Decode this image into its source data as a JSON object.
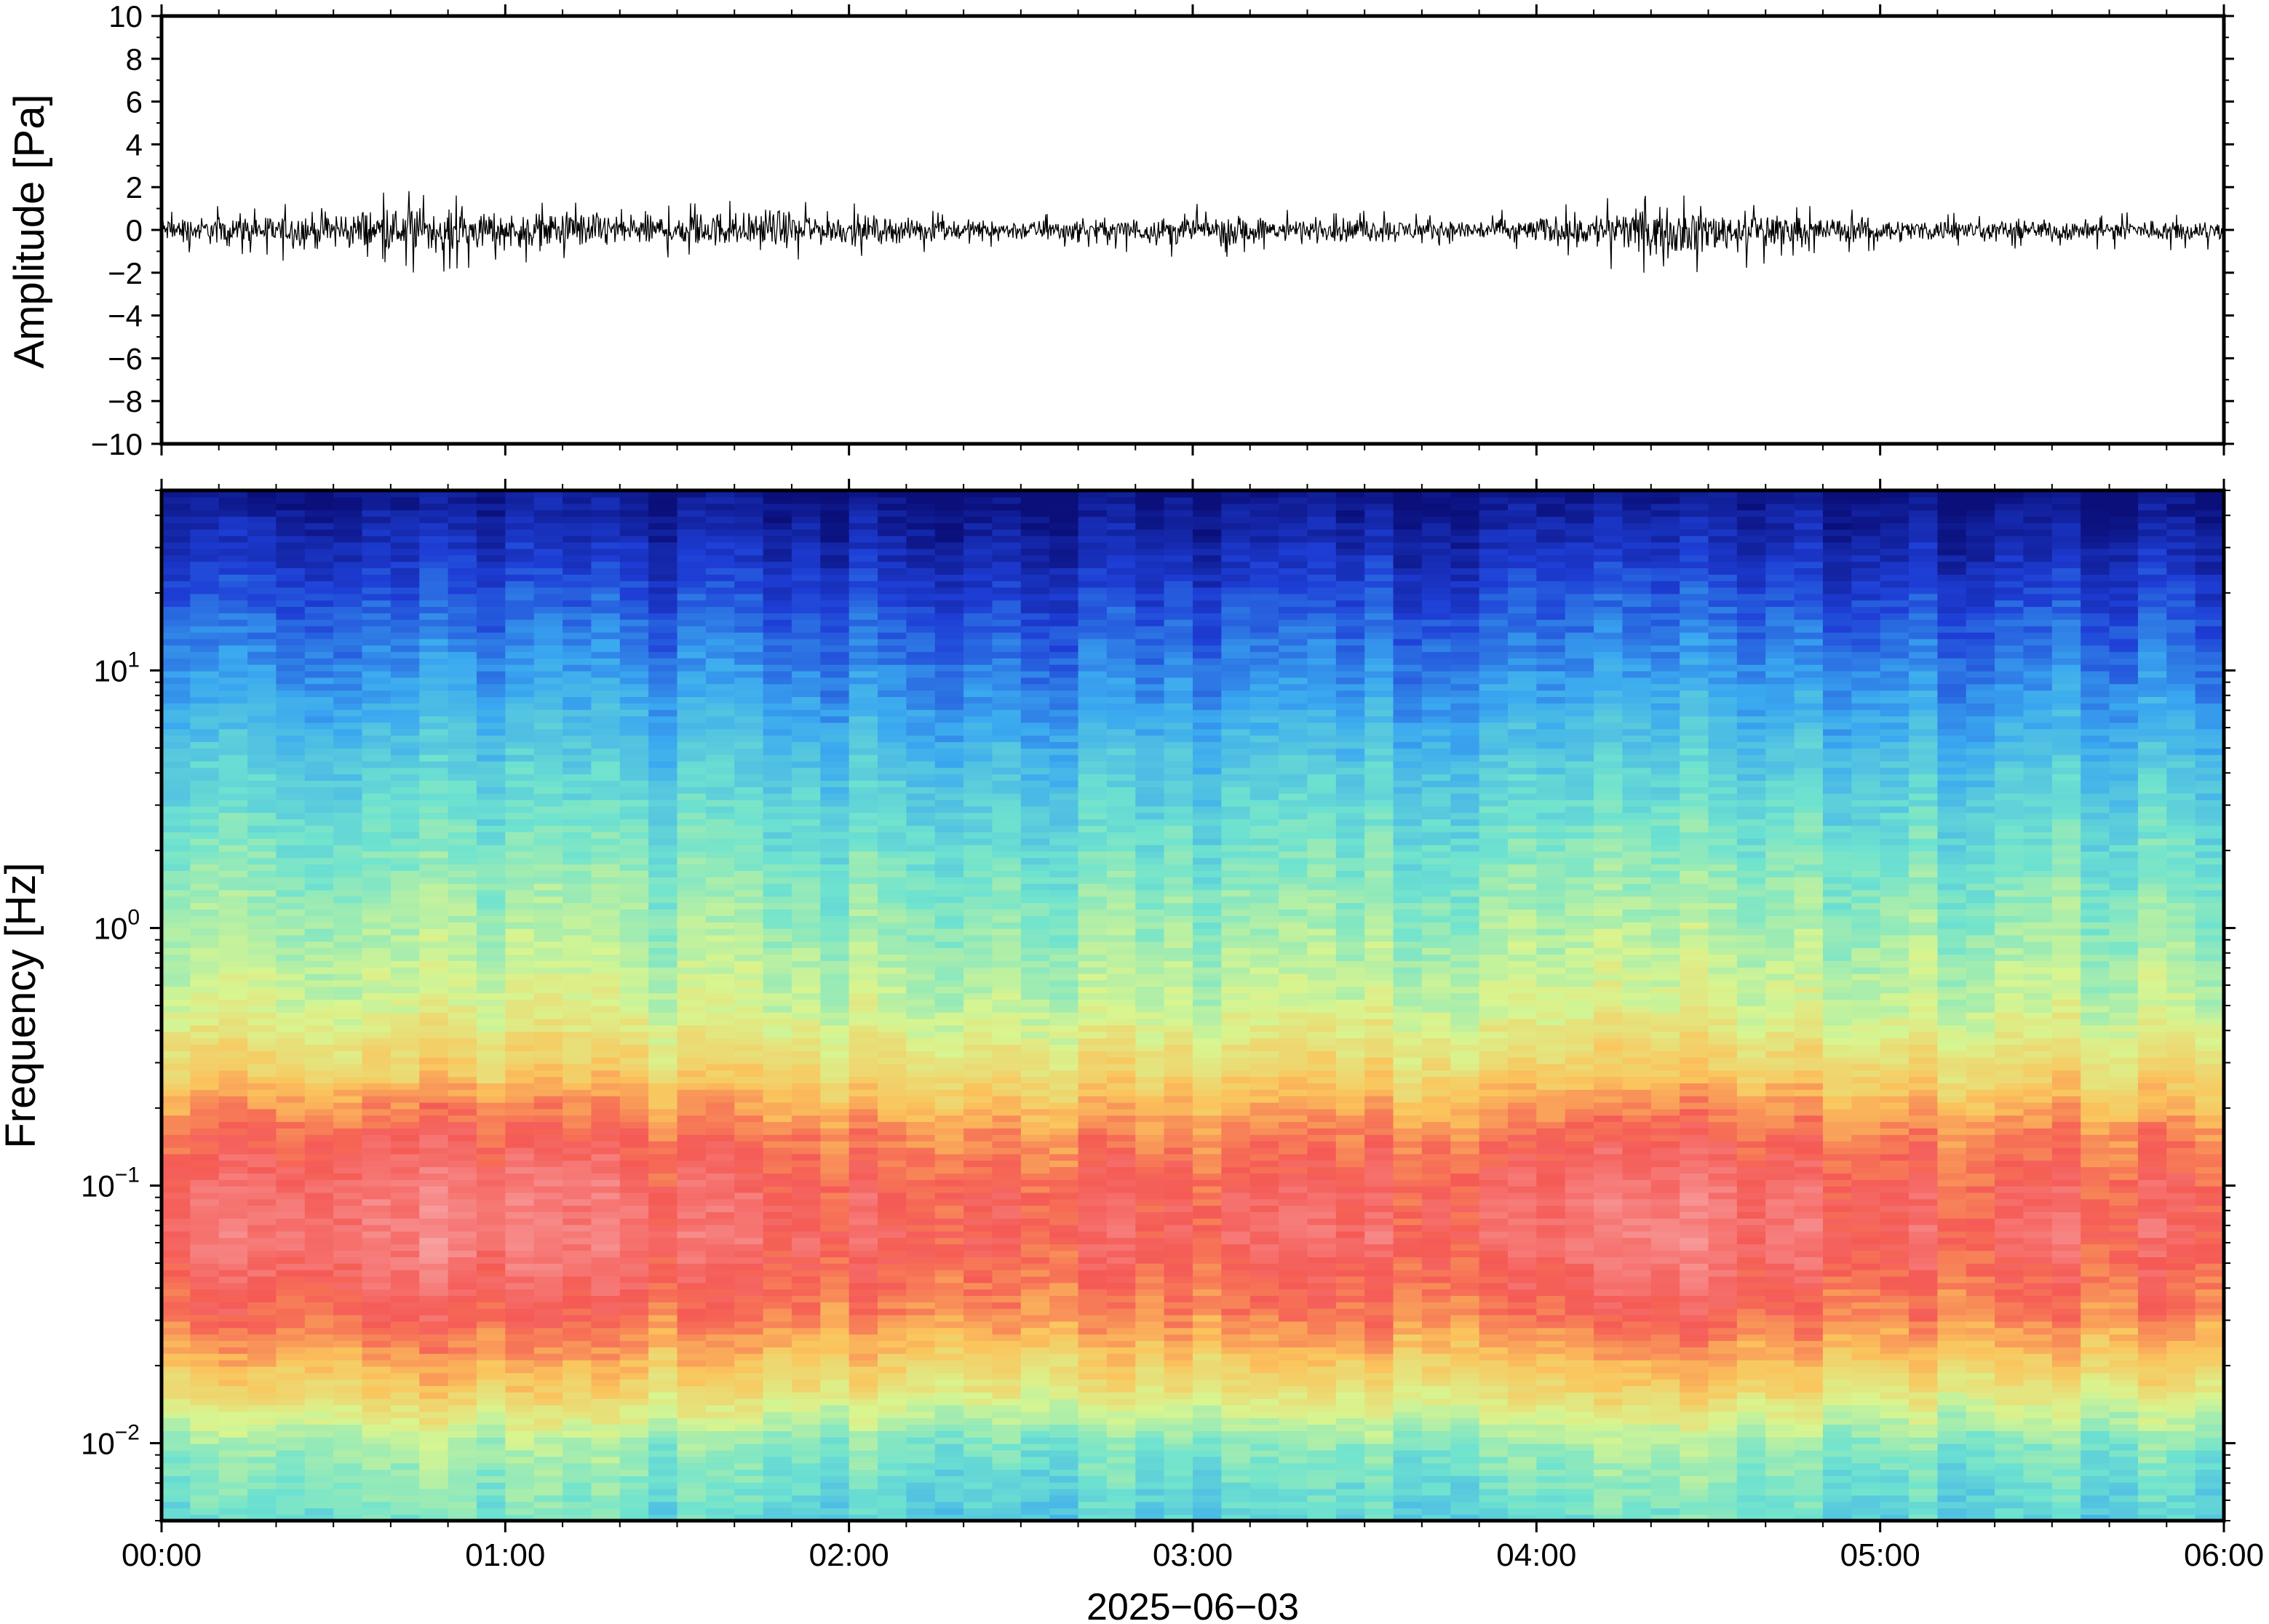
{
  "chart_data": [
    {
      "type": "line",
      "panel": "waveform",
      "ylabel": "Amplitude [Pa]",
      "xlabel": "",
      "ylim": [
        -10,
        10
      ],
      "yticks": [
        "10",
        "8",
        "6",
        "4",
        "2",
        "0",
        "−2",
        "−4",
        "−6",
        "−8",
        "−10"
      ],
      "xlim_hours": [
        0,
        6
      ],
      "grid": false,
      "series_envelope": {
        "x_hours": [
          0,
          0.25,
          0.5,
          0.75,
          1.0,
          1.25,
          1.5,
          1.75,
          2.0,
          2.25,
          2.5,
          2.75,
          3.0,
          3.25,
          3.5,
          3.75,
          4.0,
          4.25,
          4.5,
          4.75,
          5.0,
          5.25,
          5.5,
          5.75,
          6.0
        ],
        "max_pa": [
          1.0,
          1.1,
          1.6,
          1.9,
          1.4,
          1.5,
          1.3,
          1.8,
          1.2,
          0.9,
          0.8,
          0.9,
          1.2,
          1.0,
          0.9,
          0.8,
          1.0,
          1.6,
          1.7,
          1.1,
          0.9,
          0.8,
          0.8,
          0.8,
          0.9
        ],
        "min_pa": [
          -1.1,
          -1.3,
          -1.7,
          -2.0,
          -1.5,
          -1.6,
          -1.4,
          -1.4,
          -1.2,
          -1.0,
          -0.9,
          -1.0,
          -1.3,
          -1.1,
          -1.0,
          -1.0,
          -1.1,
          -1.9,
          -2.1,
          -1.2,
          -1.0,
          -0.9,
          -0.9,
          -0.9,
          -1.0
        ]
      }
    },
    {
      "type": "heatmap",
      "panel": "spectrogram",
      "ylabel": "Frequency [Hz]",
      "xlabel": "2025−06−03",
      "yscale": "log",
      "ylim": [
        0.005,
        50
      ],
      "yticks": [
        {
          "base": "10",
          "exp": "1"
        },
        {
          "base": "10",
          "exp": "0"
        },
        {
          "base": "10",
          "exp": "−1"
        },
        {
          "base": "10",
          "exp": "−2"
        }
      ],
      "xticks": [
        "00:00",
        "01:00",
        "02:00",
        "03:00",
        "04:00",
        "05:00",
        "06:00"
      ],
      "xlim_hours": [
        0,
        6
      ],
      "colormap": "rainbow",
      "colormap_stops": [
        "#0a0f7a",
        "#1e3ed6",
        "#3aa8f0",
        "#6fe3cf",
        "#d8f590",
        "#fbc45c",
        "#f55a55",
        "#f7a0a0"
      ],
      "time_columns": 72,
      "freq_rows": 160,
      "level_profile": {
        "log10_freq": [
          -2.3,
          -2.0,
          -1.8,
          -1.5,
          -1.2,
          -1.0,
          -0.8,
          -0.6,
          -0.3,
          0.0,
          0.3,
          0.6,
          0.8,
          1.0,
          1.2,
          1.4,
          1.6,
          1.7
        ],
        "level": [
          0.38,
          0.46,
          0.62,
          0.8,
          0.88,
          0.86,
          0.8,
          0.68,
          0.55,
          0.49,
          0.43,
          0.36,
          0.3,
          0.24,
          0.18,
          0.11,
          0.04,
          0.0
        ]
      },
      "activity_by_hour": {
        "x_hours": [
          0,
          0.5,
          0.75,
          1.0,
          1.5,
          2.0,
          3.0,
          3.5,
          4.0,
          4.4,
          5.0,
          6.0
        ],
        "boost": [
          0.0,
          0.06,
          0.07,
          0.05,
          0.02,
          0.0,
          -0.01,
          0.0,
          0.01,
          0.05,
          0.0,
          0.0
        ]
      }
    }
  ]
}
